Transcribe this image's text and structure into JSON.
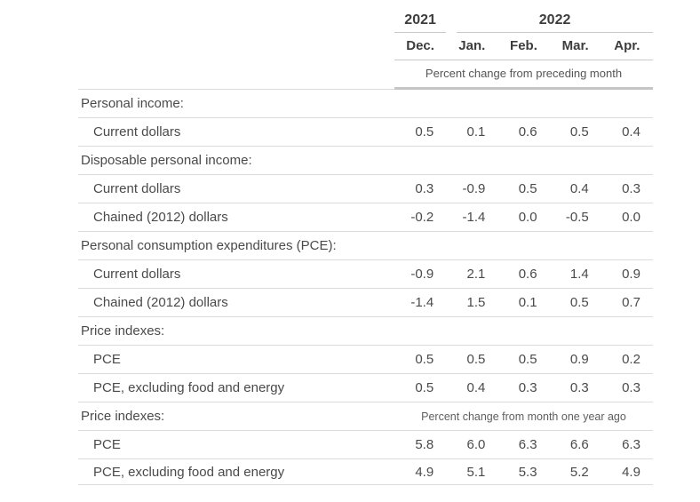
{
  "chart_data": {
    "type": "table",
    "title": "",
    "year_groups": [
      {
        "label": "2021",
        "span": 1
      },
      {
        "label": "2022",
        "span": 4
      }
    ],
    "columns": [
      "Dec.",
      "Jan.",
      "Feb.",
      "Mar.",
      "Apr."
    ],
    "unit_note_top": "Percent change from preceding month",
    "rows": [
      {
        "kind": "section",
        "label": "Personal income:"
      },
      {
        "kind": "data",
        "label": "Current dollars",
        "values": [
          "0.5",
          "0.1",
          "0.6",
          "0.5",
          "0.4"
        ]
      },
      {
        "kind": "section",
        "label": "Disposable personal income:"
      },
      {
        "kind": "data",
        "label": "Current dollars",
        "values": [
          "0.3",
          "-0.9",
          "0.5",
          "0.4",
          "0.3"
        ]
      },
      {
        "kind": "data",
        "label": "Chained (2012) dollars",
        "values": [
          "-0.2",
          "-1.4",
          "0.0",
          "-0.5",
          "0.0"
        ]
      },
      {
        "kind": "section",
        "label": "Personal consumption expenditures (PCE):"
      },
      {
        "kind": "data",
        "label": "Current dollars",
        "values": [
          "-0.9",
          "2.1",
          "0.6",
          "1.4",
          "0.9"
        ]
      },
      {
        "kind": "data",
        "label": "Chained (2012) dollars",
        "values": [
          "-1.4",
          "1.5",
          "0.1",
          "0.5",
          "0.7"
        ]
      },
      {
        "kind": "section",
        "label": "Price indexes:"
      },
      {
        "kind": "data",
        "label": "PCE",
        "values": [
          "0.5",
          "0.5",
          "0.5",
          "0.9",
          "0.2"
        ]
      },
      {
        "kind": "data",
        "label": "PCE, excluding food and energy",
        "values": [
          "0.5",
          "0.4",
          "0.3",
          "0.3",
          "0.3"
        ]
      },
      {
        "kind": "section",
        "label": "Price indexes:",
        "note": "Percent change from month one year ago"
      },
      {
        "kind": "data",
        "label": "PCE",
        "values": [
          "5.8",
          "6.0",
          "6.3",
          "6.6",
          "6.3"
        ]
      },
      {
        "kind": "data",
        "label": "PCE, excluding food and energy",
        "values": [
          "4.9",
          "5.1",
          "5.3",
          "5.2",
          "4.9"
        ]
      }
    ],
    "colors": {
      "text": "#4a4a4a",
      "heading": "#3d3d3d",
      "row_line": "#dbdbdb",
      "header_line": "#c9c9c9",
      "thick_line": "#c5c5c5",
      "note_text": "#5f5f5f",
      "background": "#ffffff"
    }
  }
}
